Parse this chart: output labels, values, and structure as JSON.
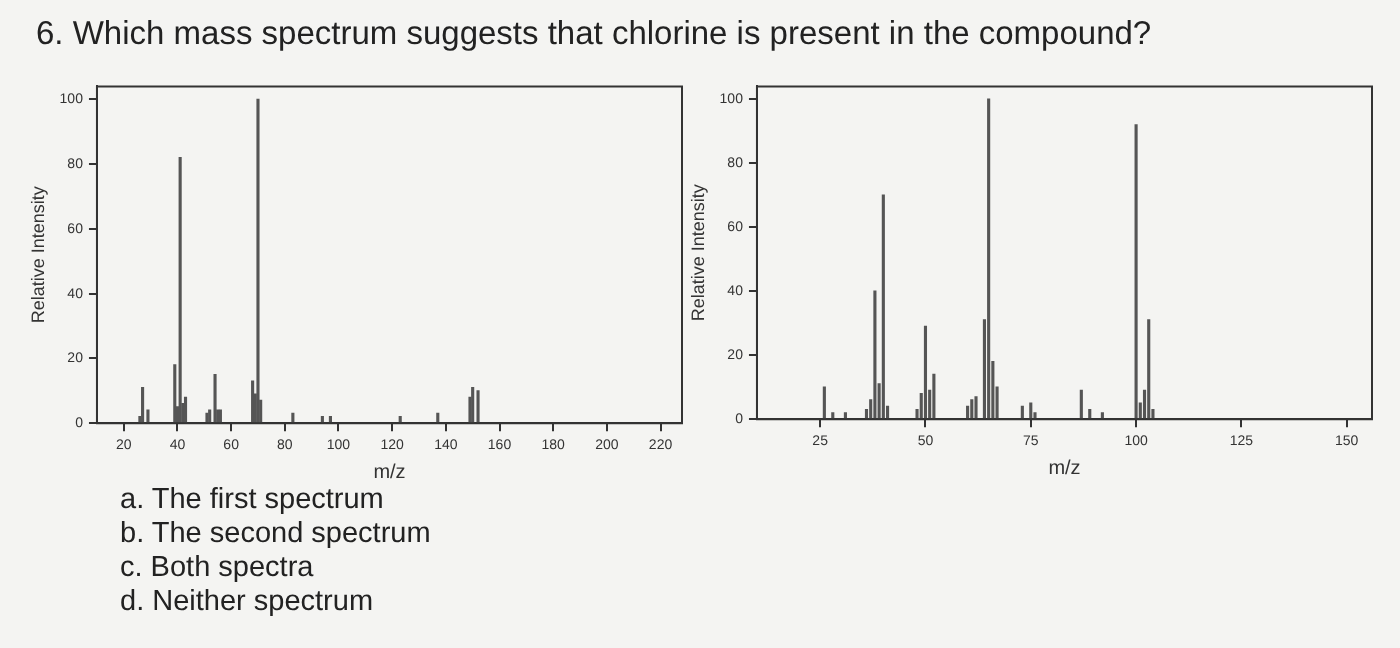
{
  "chart_data": [
    {
      "type": "bar",
      "title": "6. Which mass spectrum suggests that chlorine is present in the compound?",
      "xlabel": "m/z",
      "ylabel": "Relative Intensity",
      "color": "#555555",
      "x": [
        26,
        27,
        29,
        39,
        40,
        41,
        42,
        43,
        51,
        52,
        54,
        55,
        56,
        68,
        69,
        70,
        71,
        83,
        94,
        97,
        123,
        137,
        149,
        150,
        152
      ],
      "values": [
        2,
        11,
        4,
        18,
        5,
        82,
        6,
        8,
        3,
        4,
        15,
        4,
        4,
        13,
        9,
        100,
        7,
        3,
        2,
        2,
        2,
        3,
        8,
        11,
        10
      ],
      "xlim": [
        10,
        228
      ],
      "ylim": [
        0,
        104
      ],
      "xticks": [
        20,
        40,
        60,
        80,
        100,
        120,
        140,
        160,
        180,
        200,
        220
      ],
      "yticks": [
        0,
        20,
        40,
        60,
        80,
        100
      ],
      "annotations": [
        "a.  The first spectrum",
        "b.  The second spectrum",
        "c.  Both spectra",
        "d.  Neither spectrum"
      ]
    },
    {
      "type": "bar",
      "xlabel": "m/z",
      "ylabel": "Relative Intensity",
      "color": "#555555",
      "x": [
        26,
        28,
        31,
        36,
        37,
        38,
        39,
        40,
        41,
        48,
        49,
        50,
        51,
        52,
        60,
        61,
        62,
        64,
        65,
        66,
        67,
        73,
        75,
        76,
        87,
        89,
        92,
        100,
        101,
        102,
        103,
        104
      ],
      "values": [
        10,
        2,
        2,
        3,
        6,
        40,
        11,
        70,
        4,
        3,
        8,
        29,
        9,
        14,
        4,
        6,
        7,
        31,
        100,
        18,
        10,
        4,
        5,
        2,
        9,
        3,
        2,
        92,
        5,
        9,
        31,
        3
      ],
      "xlim": [
        10,
        156
      ],
      "ylim": [
        0,
        104
      ],
      "xticks": [
        25,
        50,
        75,
        100,
        125,
        150
      ],
      "yticks": [
        0,
        20,
        40,
        60,
        80,
        100
      ]
    }
  ]
}
